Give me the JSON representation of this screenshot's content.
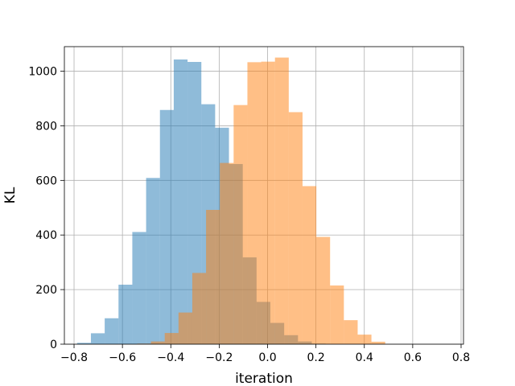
{
  "chart_data": {
    "type": "histogram",
    "xlabel": "iteration",
    "ylabel": "KL",
    "xlim": [
      -0.84,
      0.81
    ],
    "ylim": [
      0,
      1090
    ],
    "xticks": [
      -0.8,
      -0.6,
      -0.4,
      -0.2,
      0.0,
      0.2,
      0.4,
      0.6,
      0.8
    ],
    "xtick_labels": [
      "−0.8",
      "−0.6",
      "−0.4",
      "−0.2",
      "0.0",
      "0.2",
      "0.4",
      "0.6",
      "0.8"
    ],
    "yticks": [
      0,
      200,
      400,
      600,
      800,
      1000
    ],
    "ytick_labels": [
      "0",
      "200",
      "400",
      "600",
      "800",
      "1000"
    ],
    "grid": true,
    "legend": "none",
    "bar_opacity": 0.5,
    "series": [
      {
        "color": "#1f77b4",
        "bin_start": -0.7874,
        "bin_width": 0.05707,
        "counts": [
          5,
          40,
          95,
          218,
          411,
          609,
          858,
          1043,
          1034,
          879,
          793,
          660,
          318,
          155,
          78,
          33,
          10,
          2
        ]
      },
      {
        "color": "#ff7f0e",
        "bin_start": -0.5391,
        "bin_width": 0.05697,
        "counts": [
          2,
          10,
          41,
          116,
          261,
          492,
          664,
          876,
          1033,
          1035,
          1050,
          850,
          579,
          393,
          215,
          88,
          35,
          9
        ]
      }
    ]
  }
}
